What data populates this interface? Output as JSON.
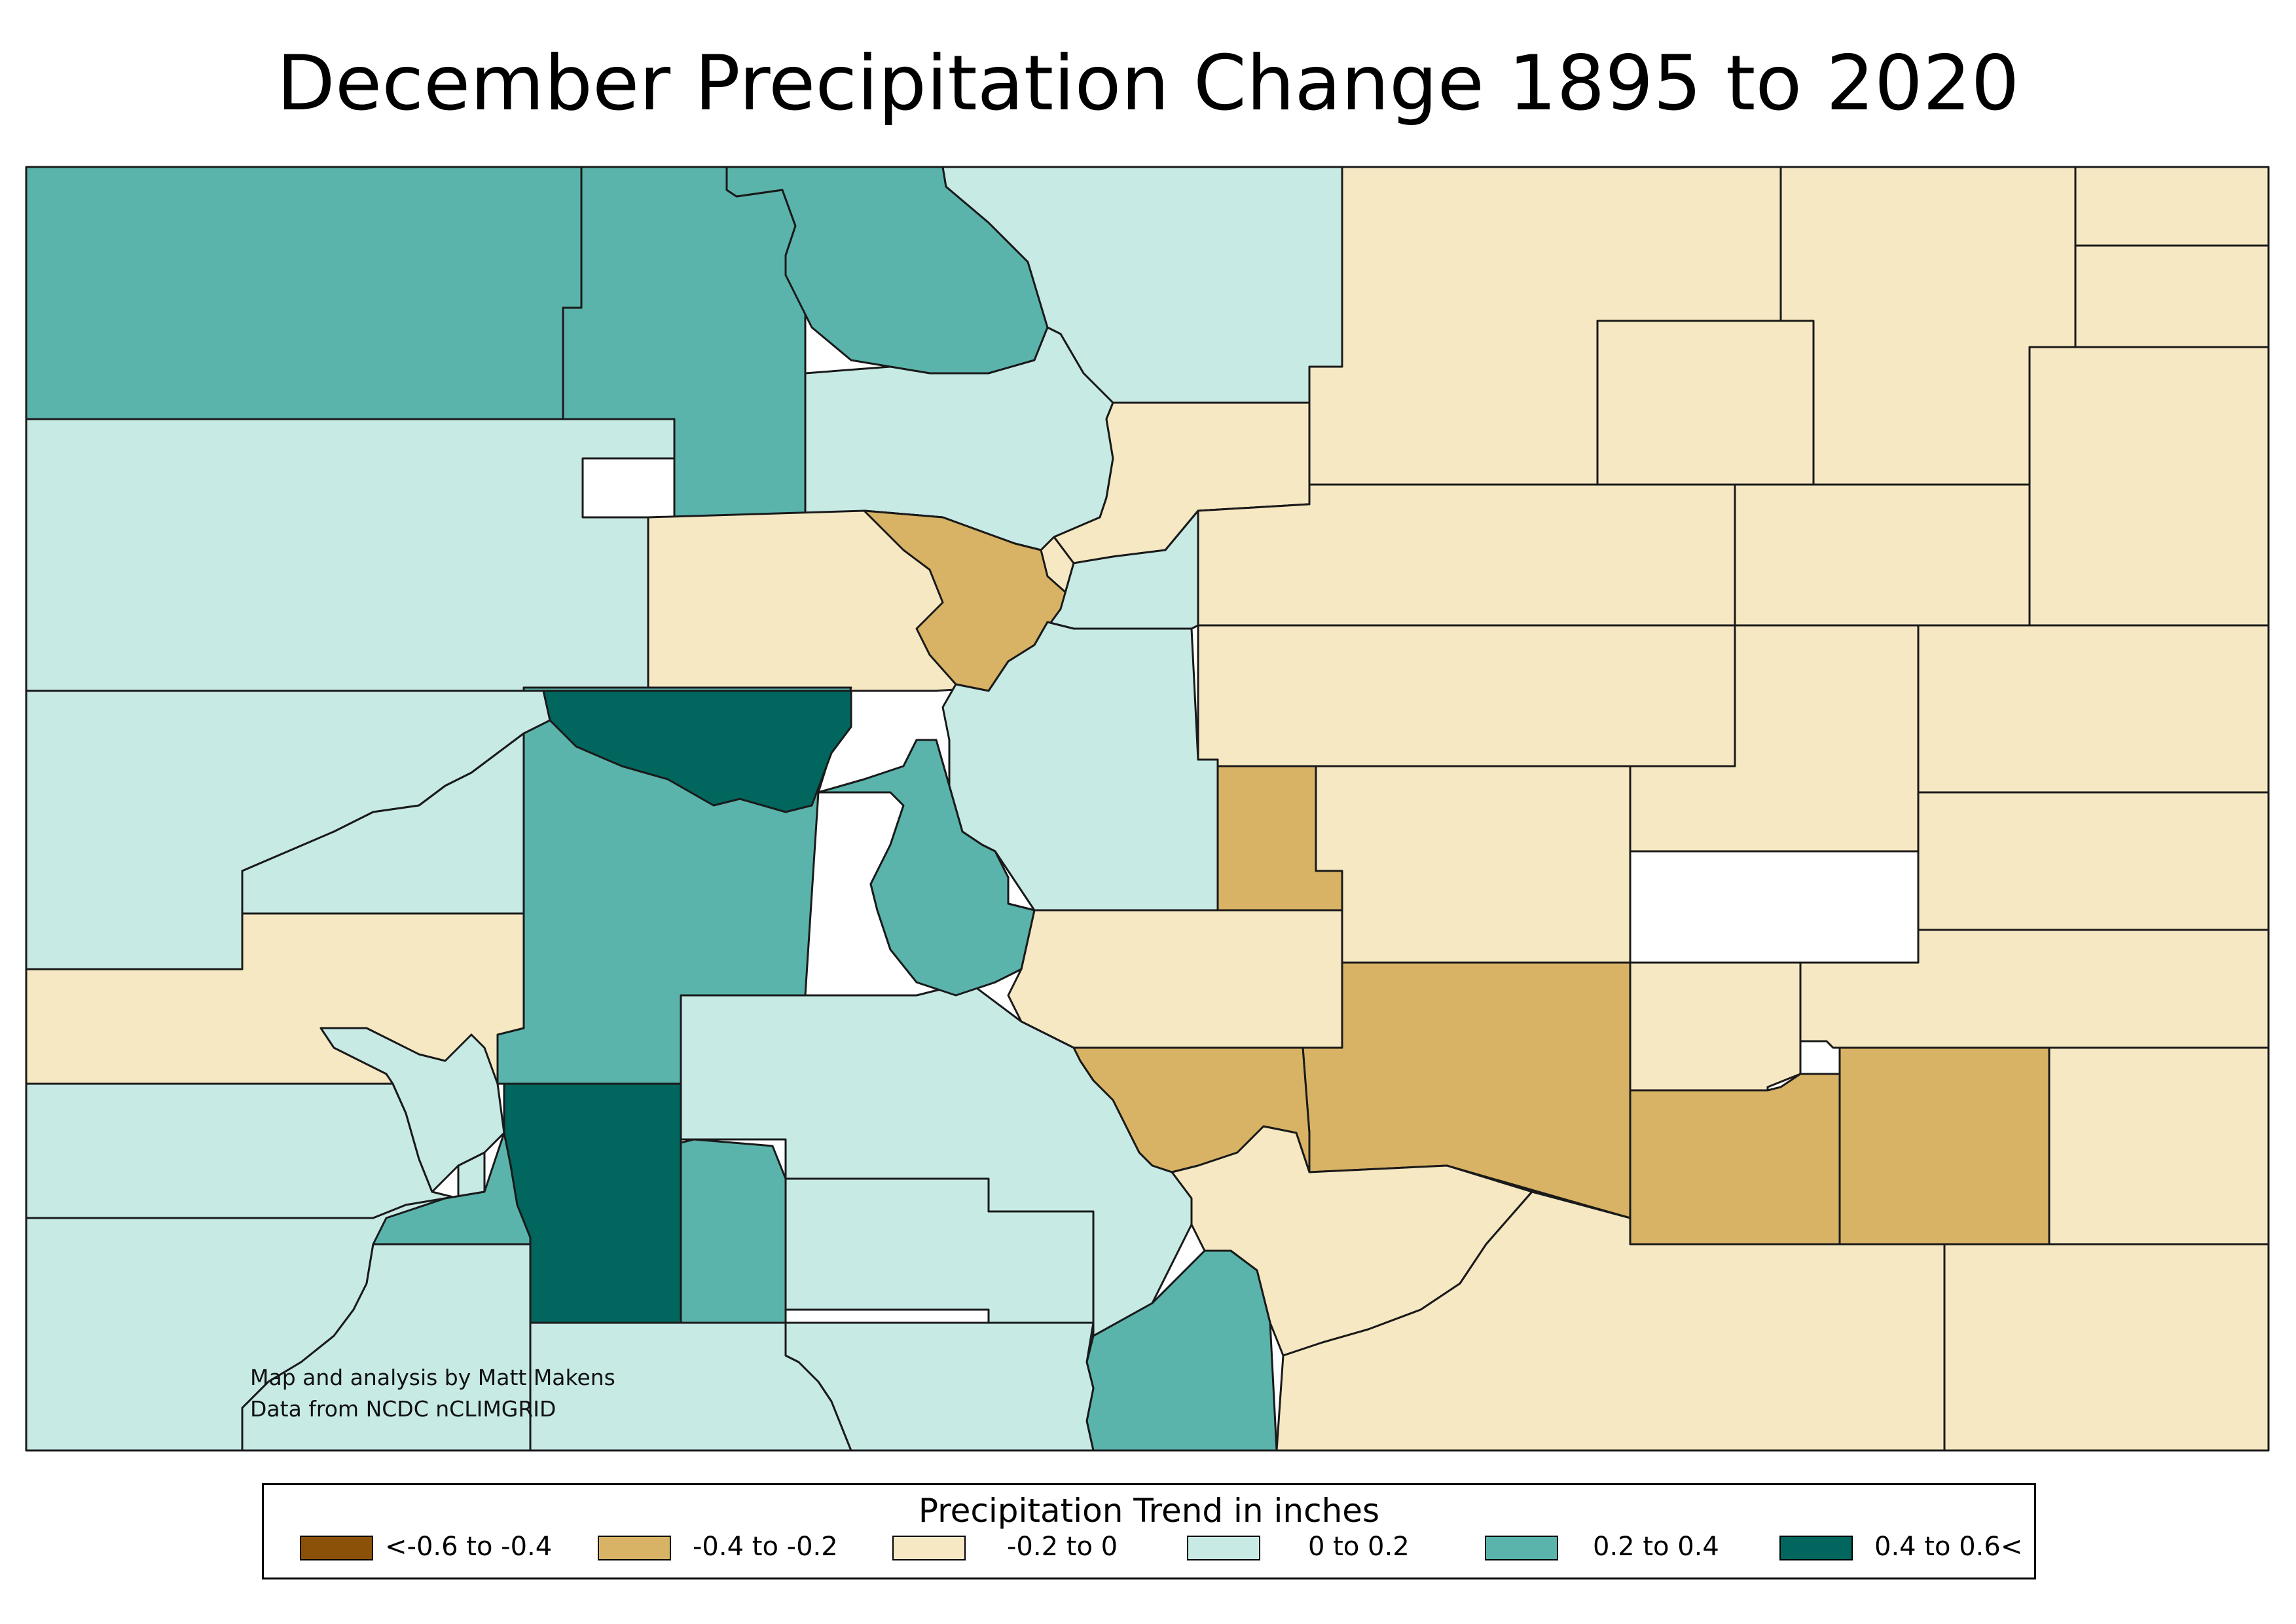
{
  "title": "December Precipitation Change 1895 to 2020",
  "credit": {
    "line1": "Map and analysis by Matt Makens",
    "line2": "Data from NCDC nCLIMGRID"
  },
  "legend": {
    "title": "Precipitation Trend in inches",
    "items": [
      {
        "label": "<-0.6 to -0.4",
        "color": "#8b5109"
      },
      {
        "label": "-0.4 to -0.2",
        "color": "#d8b365"
      },
      {
        "label": "-0.2 to 0",
        "color": "#f6e8c3"
      },
      {
        "label": "0 to 0.2",
        "color": "#c7eae5"
      },
      {
        "label": "0.2 to 0.4",
        "color": "#5ab4ac"
      },
      {
        "label": "0.4 to 0.6<",
        "color": "#01665e"
      }
    ]
  },
  "class_colors": {
    "neg04": "#d8b365",
    "neg02": "#f6e8c3",
    "pos02": "#c7eae5",
    "pos04": "#5ab4ac",
    "pos06": "#01665e"
  }
}
